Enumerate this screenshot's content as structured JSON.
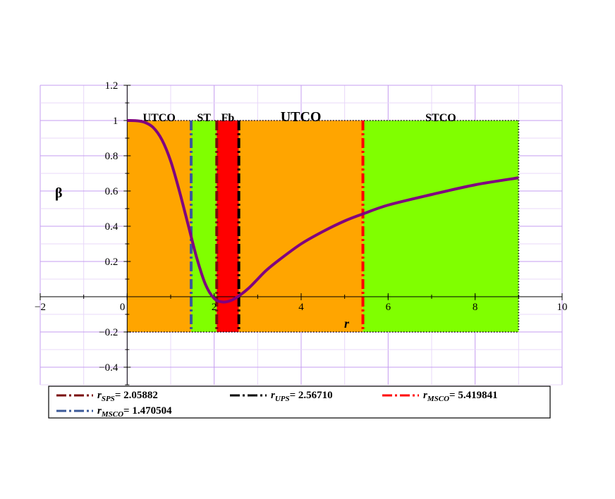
{
  "chart_data": {
    "type": "line",
    "title": "",
    "xlabel": "r",
    "ylabel": "β",
    "xlim": [
      -2,
      10
    ],
    "ylim": [
      -0.5,
      1.2
    ],
    "grid": true,
    "legend_placement": "bottom",
    "x_ticks": [
      "−2",
      "0",
      "2",
      "4",
      "6",
      "8",
      "10"
    ],
    "x_tick_values": [
      -2,
      0,
      2,
      4,
      6,
      8,
      10
    ],
    "y_ticks": [
      "1.2",
      "1",
      "0.8",
      "0.6",
      "0.4",
      "0.2",
      "−0.2",
      "−0.4"
    ],
    "y_tick_values": [
      1.2,
      1,
      0.8,
      0.6,
      0.4,
      0.2,
      -0.2,
      -0.4
    ],
    "regions": [
      {
        "label": "UTCO",
        "x0": 0,
        "x1": 1.470504,
        "color": "#FFA500"
      },
      {
        "label": "ST",
        "x0": 1.470504,
        "x1": 2.05882,
        "color": "#80FF00"
      },
      {
        "label": "Fb",
        "x0": 2.05882,
        "x1": 2.5671,
        "color": "#FF0000"
      },
      {
        "label": "UTCO",
        "x0": 2.5671,
        "x1": 5.419841,
        "color": "#FFA500"
      },
      {
        "label": "STCO",
        "x0": 5.419841,
        "x1": 9,
        "color": "#80FF00"
      }
    ],
    "region_ylim": [
      -0.2,
      1
    ],
    "series": [
      {
        "name": "",
        "color": "#800080",
        "x": [
          0,
          0.2,
          0.4,
          0.6,
          0.8,
          1.0,
          1.2,
          1.4,
          1.6,
          1.8,
          2.0,
          2.2,
          2.4,
          2.6,
          2.8,
          3.0,
          3.2,
          3.5,
          4.0,
          4.5,
          5.0,
          5.419841,
          6.0,
          7.0,
          8.0,
          9.0
        ],
        "y": [
          1.0,
          0.999,
          0.99,
          0.96,
          0.89,
          0.77,
          0.6,
          0.41,
          0.22,
          0.07,
          -0.01,
          -0.03,
          -0.02,
          0.01,
          0.05,
          0.1,
          0.15,
          0.21,
          0.3,
          0.37,
          0.43,
          0.47,
          0.52,
          0.58,
          0.635,
          0.675
        ]
      }
    ],
    "vlines": [
      {
        "name": "r_SPS",
        "label_main": "r",
        "label_sub": "SPS",
        "value_text": "= 2.05882",
        "x": 2.05882,
        "color": "#7A0A0A"
      },
      {
        "name": "r_UPS",
        "label_main": "r",
        "label_sub": "UPS",
        "value_text": "= 2.56710",
        "x": 2.5671,
        "color": "#000000"
      },
      {
        "name": "r_MSCO_outer",
        "label_main": "r",
        "label_sub": "MSCO",
        "value_text": "= 5.419841",
        "x": 5.419841,
        "color": "#FF0000"
      },
      {
        "name": "r_MSCO_inner",
        "label_main": "r",
        "label_sub": "MSCO",
        "value_text": "= 1.470504",
        "x": 1.470504,
        "color": "#3B5998"
      }
    ]
  }
}
